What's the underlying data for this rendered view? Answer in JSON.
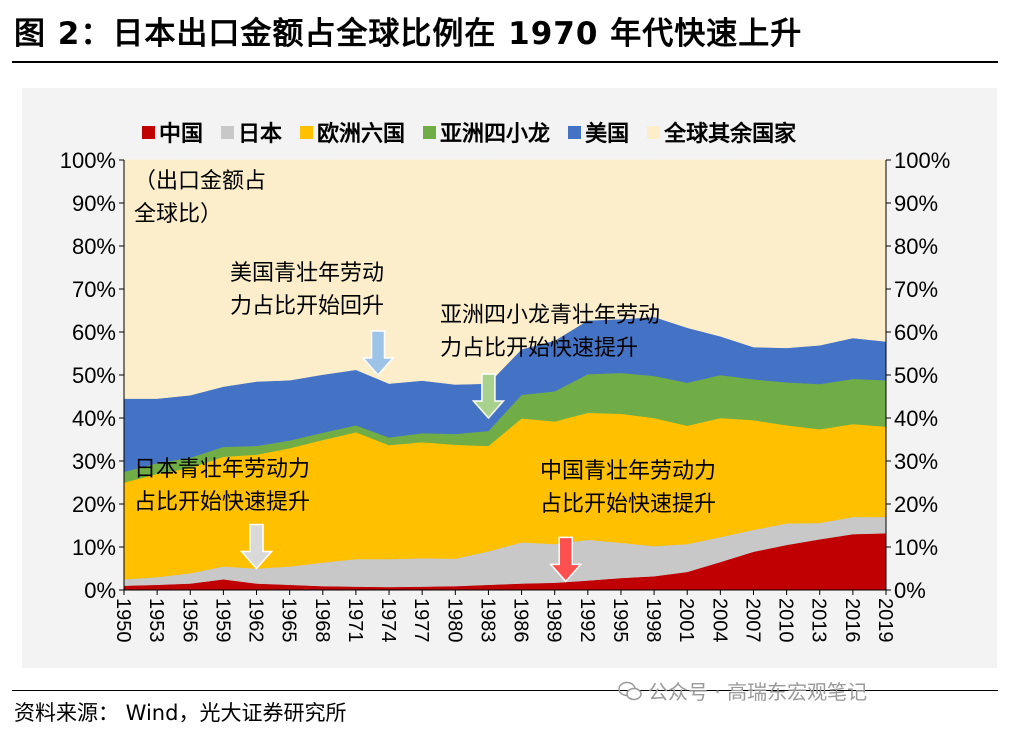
{
  "page": {
    "title": "图 2：日本出口金额占全球比例在 1970 年代快速上升",
    "source": "资料来源：   Wind，光大证券研究所",
    "watermark": "公众号 · 高瑞东宏观笔记"
  },
  "chart_data": {
    "type": "area",
    "stacked": true,
    "ylim": [
      0,
      100
    ],
    "yticks": [
      "0%",
      "10%",
      "20%",
      "30%",
      "40%",
      "50%",
      "60%",
      "70%",
      "80%",
      "90%",
      "100%"
    ],
    "y_axis_label": "（出口金额占全球比）",
    "x_ticks": [
      "1950",
      "1953",
      "1956",
      "1959",
      "1962",
      "1965",
      "1968",
      "1971",
      "1974",
      "1977",
      "1980",
      "1983",
      "1986",
      "1989",
      "1992",
      "1995",
      "1998",
      "2001",
      "2004",
      "2007",
      "2010",
      "2013",
      "2016",
      "2019"
    ],
    "x": [
      1950,
      1953,
      1956,
      1959,
      1962,
      1965,
      1968,
      1971,
      1974,
      1977,
      1980,
      1983,
      1986,
      1989,
      1992,
      1995,
      1998,
      2001,
      2004,
      2007,
      2010,
      2013,
      2016,
      2019
    ],
    "grid": false,
    "legend_position": "top",
    "series": [
      {
        "name": "中国",
        "color": "#c00000",
        "values": [
          1.0,
          1.2,
          1.5,
          2.5,
          1.5,
          1.2,
          0.9,
          0.8,
          0.7,
          0.8,
          0.9,
          1.2,
          1.5,
          1.7,
          2.2,
          2.8,
          3.2,
          4.2,
          6.5,
          8.9,
          10.5,
          11.8,
          13.0,
          13.2
        ]
      },
      {
        "name": "日本",
        "color": "#c8c8c8",
        "values": [
          1.5,
          1.8,
          2.4,
          3.0,
          3.5,
          4.3,
          5.5,
          6.4,
          6.5,
          6.6,
          6.4,
          7.8,
          9.6,
          9.0,
          9.5,
          8.2,
          7.0,
          6.5,
          5.8,
          5.1,
          5.0,
          3.8,
          4.0,
          3.8
        ]
      },
      {
        "name": "欧洲六国",
        "color": "#ffc000",
        "values": [
          22.5,
          24.0,
          24.5,
          25.5,
          26.5,
          27.5,
          28.5,
          29.5,
          26.5,
          27.0,
          26.5,
          24.5,
          28.8,
          28.5,
          29.5,
          30.0,
          29.8,
          27.5,
          27.7,
          25.5,
          22.8,
          21.8,
          21.6,
          21.0
        ]
      },
      {
        "name": "亚洲四小龙",
        "color": "#70ad47",
        "values": [
          2.5,
          2.5,
          2.4,
          2.3,
          2.0,
          1.8,
          1.7,
          1.6,
          1.8,
          2.1,
          2.5,
          3.5,
          5.5,
          7.0,
          9.0,
          9.5,
          9.8,
          10.0,
          10.0,
          9.5,
          10.0,
          10.5,
          10.5,
          10.8
        ]
      },
      {
        "name": "美国",
        "color": "#4472c4",
        "values": [
          17.0,
          15.0,
          14.5,
          14.0,
          15.0,
          14.0,
          13.5,
          12.9,
          12.5,
          12.2,
          11.5,
          11.0,
          10.6,
          11.8,
          12.5,
          12.5,
          13.7,
          12.8,
          9.0,
          7.5,
          8.0,
          9.0,
          9.5,
          9.0
        ]
      },
      {
        "name": "全球其余国家",
        "color": "#fdeecb",
        "values": [
          55.5,
          55.5,
          54.7,
          52.7,
          51.5,
          51.2,
          49.9,
          48.8,
          52.0,
          51.3,
          52.2,
          52.0,
          44.0,
          42.0,
          37.3,
          37.0,
          36.5,
          39.0,
          41.0,
          43.5,
          43.7,
          43.1,
          41.4,
          42.2
        ]
      }
    ],
    "annotations": [
      {
        "text": "美国青壮年劳动力占比开始回升",
        "lines": [
          "美国青壮年劳动",
          "力占比开始回升"
        ],
        "x": 1973,
        "y": 50,
        "arrow_color": "#9dc3e6"
      },
      {
        "text": "亚洲四小龙青壮年劳动力占比开始快速提升",
        "lines": [
          "亚洲四小龙青壮年劳动",
          "力占比开始快速提升"
        ],
        "x": 1983,
        "y": 40,
        "arrow_color": "#a9d18e"
      },
      {
        "text": "日本青壮年劳动力占比开始快速提升",
        "lines": [
          "日本青壮年劳动力",
          "占比开始快速提升"
        ],
        "x": 1962,
        "y": 5,
        "arrow_color": "#d9d9d9"
      },
      {
        "text": "中国青壮年劳动力占比开始快速提升",
        "lines": [
          "中国青壮年劳动力",
          "占比开始快速提升"
        ],
        "x": 1990,
        "y": 2,
        "arrow_color": "#ff5050"
      }
    ]
  }
}
